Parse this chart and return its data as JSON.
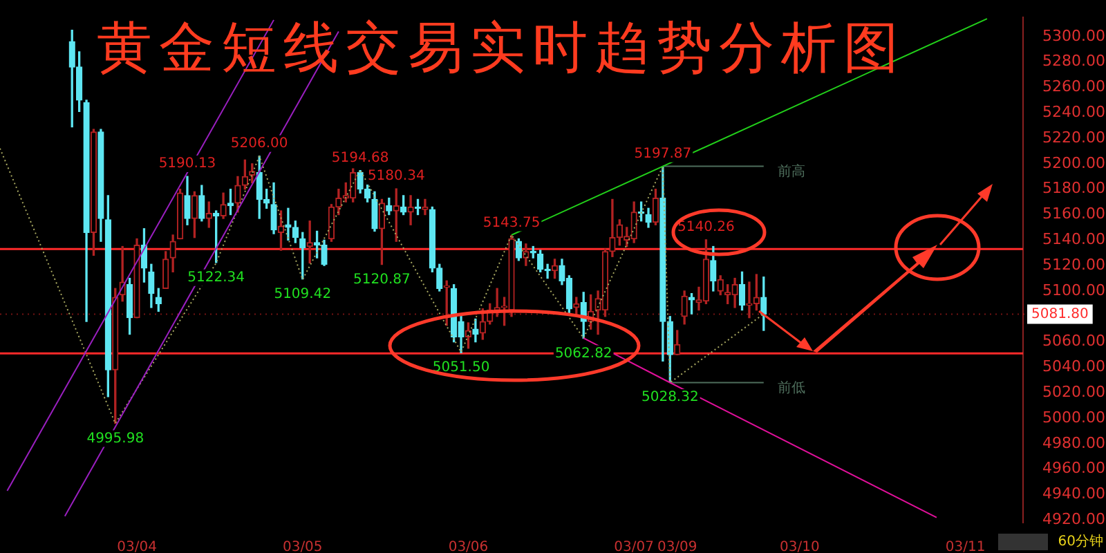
{
  "chart_data": {
    "type": "candlestick",
    "title": "黄金短线交易实时趋势分析图",
    "categories": [
      null,
      null,
      null,
      null,
      null,
      null,
      null,
      null,
      null,
      null,
      null,
      null,
      null,
      null,
      null,
      null,
      null,
      null,
      null,
      "03/04",
      null,
      null,
      null,
      null,
      null,
      null,
      null,
      null,
      null,
      null,
      null,
      null,
      null,
      null,
      null,
      null,
      null,
      null,
      null,
      null,
      null,
      null,
      "03/05",
      null,
      null,
      null,
      null,
      null,
      null,
      null,
      null,
      null,
      null,
      null,
      null,
      null,
      null,
      null,
      null,
      null,
      null,
      null,
      null,
      null,
      null,
      "03/06",
      null,
      null,
      null,
      null,
      null,
      null,
      null,
      null,
      null,
      null,
      null,
      null,
      null,
      null,
      null,
      null,
      null,
      null,
      null,
      null,
      null,
      null,
      "03/07",
      null,
      null,
      null,
      null,
      null,
      "03/09",
      null,
      null,
      null,
      null,
      null,
      null,
      null,
      null,
      null,
      null,
      null,
      null,
      null,
      null,
      null,
      null,
      "03/10",
      null,
      null,
      null,
      null,
      null,
      null,
      null,
      null,
      null,
      null,
      null,
      null,
      null,
      null,
      null,
      null,
      null,
      null,
      null,
      null,
      null,
      null,
      "03/11",
      null,
      null,
      null,
      null,
      null,
      null,
      null,
      null
    ],
    "ohlc": [
      null,
      null,
      null,
      null,
      null,
      null,
      null,
      null,
      null,
      null,
      [
        5296,
        5305,
        5229,
        5276
      ],
      [
        5276,
        5288,
        5241,
        5250
      ],
      [
        5248,
        5250,
        5076,
        5146
      ],
      [
        5146,
        5227,
        5128,
        5225
      ],
      [
        5225,
        5227,
        5139,
        5157
      ],
      [
        5156,
        5175,
        5017,
        5038
      ],
      [
        5038,
        5102,
        4995.98,
        5095
      ],
      [
        5097,
        5135,
        5092,
        5107
      ],
      [
        5105,
        5110,
        5066,
        5079
      ],
      [
        5079,
        5141,
        5079,
        5136
      ],
      [
        5136,
        5149,
        5107,
        5118
      ],
      [
        5115,
        5121,
        5087,
        5098
      ],
      [
        5095,
        5102,
        5084,
        5090
      ],
      [
        5102,
        5131,
        5102,
        5125
      ],
      [
        5126,
        5144,
        5115,
        5139
      ],
      [
        5141,
        5180,
        5141,
        5177
      ],
      [
        5175,
        5190.13,
        5152,
        5157
      ],
      [
        5157,
        5178,
        5142,
        5175
      ],
      [
        5175,
        5183,
        5155,
        5157
      ],
      [
        5157,
        5170,
        5150,
        5161
      ],
      [
        5161,
        5163,
        5122.34,
        5159
      ],
      [
        5159,
        5177,
        5157,
        5168
      ],
      [
        5169,
        5180,
        5160,
        5167
      ],
      [
        5169,
        5190,
        5162,
        5183
      ],
      [
        5183,
        5203,
        5180,
        5190
      ],
      [
        5191,
        5200,
        5185,
        5194
      ],
      [
        5193,
        5206,
        5157,
        5172
      ],
      [
        5172,
        5180,
        5165,
        5169
      ],
      [
        5168,
        5185,
        5145,
        5148
      ],
      [
        5146,
        5163,
        5132,
        5151
      ],
      [
        5152,
        5165,
        5140,
        5150
      ],
      [
        5150,
        5155,
        5138,
        5142
      ],
      [
        5141,
        5146,
        5109.42,
        5134
      ],
      [
        5135,
        5155,
        5122,
        5138
      ],
      [
        5138,
        5147,
        5126,
        5136
      ],
      [
        5136,
        5140,
        5120,
        5121
      ],
      [
        5141,
        5168,
        5139,
        5166
      ],
      [
        5166,
        5180,
        5160,
        5173
      ],
      [
        5173,
        5185,
        5170,
        5175
      ],
      [
        5173,
        5196,
        5170,
        5193
      ],
      [
        5193,
        5194.68,
        5177,
        5180
      ],
      [
        5180,
        5185,
        5170,
        5173
      ],
      [
        5172,
        5178,
        5147,
        5149
      ],
      [
        5149,
        5172,
        5120.87,
        5169
      ],
      [
        5167,
        5173,
        5160,
        5163
      ],
      [
        5163,
        5180.34,
        5139,
        5167
      ],
      [
        5166,
        5175,
        5160,
        5162
      ],
      [
        5162,
        5175,
        5152,
        5166
      ],
      [
        5166,
        5172,
        5160,
        5165
      ],
      [
        5164,
        5172,
        5160,
        5166
      ],
      [
        5164,
        5166,
        5115,
        5118
      ],
      [
        5118,
        5121,
        5100,
        5102
      ],
      [
        5103,
        5108,
        5073,
        5104
      ],
      [
        5102,
        5105,
        5060,
        5064
      ],
      [
        5076,
        5080,
        5051.5,
        5064
      ],
      [
        5064,
        5075,
        5055,
        5069
      ],
      [
        5070,
        5078,
        5060,
        5066
      ],
      [
        5067,
        5086,
        5062,
        5076
      ],
      [
        5076,
        5090,
        5074,
        5085
      ],
      [
        5085,
        5102,
        5080,
        5087
      ],
      [
        5087,
        5095,
        5073,
        5088
      ],
      [
        5085,
        5143.75,
        5080,
        5141
      ],
      [
        5139,
        5141,
        5124,
        5126
      ],
      [
        5126,
        5137,
        5120,
        5131
      ],
      [
        5131,
        5135,
        5126,
        5130
      ],
      [
        5129,
        5132,
        5115,
        5117
      ],
      [
        5117,
        5121,
        5110,
        5116
      ],
      [
        5116,
        5125,
        5110,
        5120
      ],
      [
        5120,
        5125,
        5105,
        5108
      ],
      [
        5110,
        5112,
        5083,
        5086
      ],
      [
        5087,
        5095,
        5082,
        5090
      ],
      [
        5091,
        5099,
        5062.82,
        5076
      ],
      [
        5076,
        5097,
        5070,
        5084
      ],
      [
        5085,
        5100,
        5066,
        5094
      ],
      [
        5085,
        5133,
        5080,
        5131
      ],
      [
        5131,
        5172,
        5127,
        5142
      ],
      [
        5142,
        5156,
        5136,
        5152
      ],
      [
        5140,
        5150,
        5135,
        5143
      ],
      [
        5141,
        5170,
        5138,
        5162
      ],
      [
        5162,
        5170,
        5155,
        5161
      ],
      [
        5160,
        5165,
        5150,
        5154
      ],
      [
        5154,
        5180,
        5152,
        5173
      ],
      [
        5173,
        5197.87,
        5045,
        5076
      ],
      [
        5076,
        5080,
        5028.32,
        5050
      ],
      [
        5050,
        5069,
        5050,
        5058
      ],
      [
        5080,
        5100,
        5074,
        5096
      ],
      [
        5095,
        5098,
        5082,
        5093
      ],
      [
        5091,
        5103,
        5085,
        5093
      ],
      [
        5092,
        5140.26,
        5090,
        5125
      ],
      [
        5124,
        5135,
        5100,
        5108
      ],
      [
        5100,
        5112,
        5097,
        5109
      ],
      [
        5097,
        5105,
        5090,
        5099
      ],
      [
        5097,
        5110,
        5087,
        5105
      ],
      [
        5105,
        5115,
        5085,
        5089
      ],
      [
        5089,
        5107,
        5079,
        5090
      ],
      [
        5090,
        5113,
        5085,
        5095
      ],
      [
        5095,
        5111,
        5069,
        5081.8
      ],
      null,
      null,
      null,
      null,
      null,
      null,
      null,
      null,
      null,
      null,
      null,
      null,
      null,
      null,
      null,
      null,
      null,
      null,
      null,
      null,
      null,
      null,
      null,
      null,
      null,
      null,
      null,
      null,
      null,
      null,
      null,
      null,
      null,
      null,
      null,
      null
    ],
    "colors": [
      null,
      null,
      null,
      null,
      null,
      null,
      null,
      null,
      null,
      null,
      "#5ee6f2",
      "#5ee6f2",
      "#5ee6f2",
      "#b22222",
      "#5ee6f2",
      "#5ee6f2",
      "#b22222",
      "#b22222",
      "#5ee6f2",
      "#b22222",
      "#5ee6f2",
      "#5ee6f2",
      "#5ee6f2",
      "#b22222",
      "#b22222",
      "#b22222",
      "#5ee6f2",
      "#b22222",
      "#5ee6f2",
      "#b22222",
      "#5ee6f2",
      "#b22222",
      "#5ee6f2",
      "#b22222",
      "#b22222",
      "#b22222",
      "#5ee6f2",
      "#5ee6f2",
      "#5ee6f2",
      "#b22222",
      "#5ee6f2",
      "#5ee6f2",
      "#5ee6f2",
      "#b22222",
      "#5ee6f2",
      "#5ee6f2",
      "#b22222",
      "#b22222",
      "#b22222",
      "#b22222",
      "#5ee6f2",
      "#5ee6f2",
      "#5ee6f2",
      "#b22222",
      "#5ee6f2",
      "#b22222",
      "#5ee6f2",
      "#b22222",
      "#5ee6f2",
      "#b22222",
      "#5ee6f2",
      "#5ee6f2",
      "#b22222",
      "#5ee6f2",
      "#5ee6f2",
      "#b22222",
      "#5ee6f2",
      "#b22222",
      "#b22222",
      "#b22222",
      "#b22222",
      "#b22222",
      "#5ee6f2",
      "#b22222",
      "#5ee6f2",
      "#5ee6f2",
      "#5ee6f2",
      "#b22222",
      "#5ee6f2",
      "#5ee6f2",
      "#b22222",
      "#5ee6f2",
      "#b22222",
      "#b22222",
      "#b22222",
      "#b22222",
      "#b22222",
      "#b22222",
      "#b22222",
      "#5ee6f2",
      "#5ee6f2",
      "#b22222",
      "#5ee6f2",
      "#5ee6f2",
      "#b22222",
      "#b22222",
      "#5ee6f2",
      "#b22222",
      "#b22222",
      "#5ee6f2",
      "#b22222",
      "#b22222",
      "#b22222",
      "#5ee6f2",
      "#b22222",
      "#b22222",
      "#5ee6f2",
      null,
      null,
      null,
      null,
      null,
      null,
      null,
      null,
      null,
      null,
      null,
      null,
      null,
      null,
      null,
      null,
      null,
      null,
      null,
      null,
      null,
      null,
      null,
      null,
      null,
      null,
      null,
      null,
      null,
      null,
      null,
      null,
      null,
      null,
      null,
      null
    ],
    "ylim": [
      4918,
      5315
    ],
    "yticks": [
      {
        "value": 4920,
        "label": "4920.00"
      },
      {
        "value": 4940,
        "label": "4940.00"
      },
      {
        "value": 4960,
        "label": "4960.00"
      },
      {
        "value": 4980,
        "label": "4980.00"
      },
      {
        "value": 5000,
        "label": "5000.00"
      },
      {
        "value": 5020,
        "label": "5020.00"
      },
      {
        "value": 5040,
        "label": "5040.00"
      },
      {
        "value": 5060,
        "label": "5060.00"
      },
      {
        "value": 5100,
        "label": "5100.00"
      },
      {
        "value": 5120,
        "label": "5120.00"
      },
      {
        "value": 5140,
        "label": "5140.00"
      },
      {
        "value": 5160,
        "label": "5160.00"
      },
      {
        "value": 5180,
        "label": "5180.00"
      },
      {
        "value": 5200,
        "label": "5200.00"
      },
      {
        "value": 5220,
        "label": "5220.00"
      },
      {
        "value": 5240,
        "label": "5240.00"
      },
      {
        "value": 5260,
        "label": "5260.00"
      },
      {
        "value": 5280,
        "label": "5280.00"
      },
      {
        "value": 5300,
        "label": "5300.00"
      }
    ],
    "series": [
      {
        "type": "line",
        "color": "#9a1fc0",
        "values": [
          null,
          4943,
          null,
          null,
          null,
          null,
          null,
          null,
          null,
          null,
          null,
          null,
          null,
          null,
          null,
          null,
          null,
          null,
          null,
          null,
          null,
          null,
          null,
          null,
          null,
          null,
          null,
          null,
          null,
          null,
          null,
          null,
          null,
          null,
          null,
          null,
          null,
          null,
          5313,
          null,
          null,
          null,
          null,
          null,
          null,
          null,
          null,
          null,
          null,
          null,
          null,
          null,
          null,
          null,
          null,
          null,
          null,
          null,
          null,
          null,
          null,
          null,
          null,
          null,
          null,
          null,
          null,
          null,
          null,
          null,
          null,
          null,
          null,
          null,
          null,
          null,
          null,
          null,
          null,
          null,
          null,
          null,
          null,
          null,
          null,
          null,
          null,
          null,
          null,
          null,
          null,
          null,
          null,
          null,
          null,
          null,
          null,
          null,
          null,
          null,
          null,
          null,
          null,
          null,
          null,
          null,
          null,
          null,
          null,
          null,
          null,
          null,
          null,
          null,
          null,
          null,
          null,
          null,
          null,
          null,
          null,
          null,
          null,
          null,
          null,
          null,
          null,
          null,
          null,
          null,
          null,
          null,
          null,
          null,
          null,
          null,
          null,
          null,
          null,
          null,
          null,
          null,
          null
        ]
      },
      {
        "type": "line",
        "color": "#9a1fc0",
        "values": [
          null,
          null,
          null,
          null,
          null,
          null,
          null,
          null,
          null,
          4923,
          null,
          null,
          null,
          null,
          null,
          null,
          null,
          null,
          null,
          null,
          null,
          null,
          null,
          null,
          null,
          null,
          null,
          null,
          null,
          null,
          null,
          null,
          null,
          null,
          null,
          null,
          null,
          null,
          null,
          null,
          null,
          null,
          null,
          null,
          null,
          null,
          null,
          5304,
          null,
          null,
          null,
          null,
          null,
          null,
          null,
          null,
          null,
          null,
          null,
          null,
          null,
          null,
          null,
          null,
          null,
          null,
          null,
          null,
          null,
          null,
          null,
          null,
          null,
          null,
          null,
          null,
          null,
          null,
          null,
          null,
          null,
          null,
          null,
          null,
          null,
          null,
          null,
          null,
          null,
          null,
          null,
          null,
          null,
          null,
          null,
          null,
          null,
          null,
          null,
          null,
          null,
          null,
          null,
          null,
          null,
          null,
          null,
          null,
          null,
          null,
          null,
          null,
          null,
          null,
          null,
          null,
          null,
          null,
          null,
          null,
          null,
          null,
          null,
          null,
          null,
          null,
          null,
          null,
          null,
          null,
          null,
          null,
          null,
          null,
          null,
          null,
          null,
          null,
          null,
          null,
          null,
          null,
          null
        ]
      },
      {
        "type": "line",
        "color": "#22d01a",
        "values": [
          null,
          null,
          null,
          null,
          null,
          null,
          null,
          null,
          null,
          null,
          null,
          null,
          null,
          null,
          null,
          null,
          null,
          null,
          null,
          null,
          null,
          null,
          null,
          null,
          null,
          null,
          null,
          null,
          null,
          null,
          null,
          null,
          null,
          null,
          null,
          null,
          null,
          null,
          null,
          null,
          null,
          null,
          null,
          null,
          null,
          null,
          null,
          null,
          null,
          null,
          null,
          null,
          null,
          null,
          null,
          null,
          null,
          null,
          null,
          null,
          null,
          null,
          null,
          null,
          null,
          null,
          null,
          null,
          null,
          null,
          null,
          5144,
          null,
          null,
          null,
          null,
          null,
          null,
          null,
          null,
          null,
          null,
          null,
          null,
          null,
          null,
          null,
          null,
          null,
          null,
          null,
          null,
          5198,
          null,
          null,
          null,
          null,
          null,
          null,
          null,
          null,
          null,
          null,
          null,
          null,
          null,
          null,
          null,
          null,
          null,
          null,
          null,
          null,
          null,
          null,
          null,
          null,
          null,
          null,
          null,
          null,
          null,
          null,
          null,
          null,
          null,
          null,
          null,
          null,
          null,
          null,
          null,
          null,
          null,
          null,
          null,
          null,
          5314,
          null,
          null,
          null,
          null,
          null
        ]
      },
      {
        "type": "line",
        "color": "#e0109a",
        "values": [
          null,
          null,
          null,
          null,
          null,
          null,
          null,
          null,
          null,
          null,
          null,
          null,
          null,
          null,
          null,
          null,
          null,
          null,
          null,
          null,
          null,
          null,
          null,
          null,
          null,
          null,
          null,
          null,
          null,
          null,
          null,
          null,
          null,
          null,
          null,
          null,
          null,
          null,
          null,
          null,
          null,
          null,
          null,
          null,
          null,
          null,
          null,
          null,
          null,
          null,
          null,
          null,
          null,
          null,
          null,
          null,
          null,
          null,
          null,
          null,
          null,
          null,
          null,
          null,
          null,
          null,
          null,
          null,
          null,
          null,
          null,
          null,
          null,
          null,
          null,
          null,
          null,
          null,
          null,
          null,
          null,
          5063,
          null,
          null,
          null,
          null,
          null,
          null,
          null,
          null,
          null,
          null,
          null,
          5028,
          null,
          null,
          null,
          null,
          null,
          null,
          null,
          null,
          null,
          null,
          null,
          null,
          null,
          null,
          null,
          null,
          null,
          null,
          null,
          null,
          null,
          null,
          null,
          null,
          null,
          null,
          null,
          null,
          null,
          null,
          null,
          null,
          null,
          null,
          null,
          null,
          4922,
          null,
          null,
          null,
          null,
          null,
          null,
          null,
          null,
          null,
          null,
          null,
          null
        ]
      },
      {
        "type": "line",
        "color": "#a8a860",
        "line_style": "dotted",
        "values": [
          5212,
          null,
          null,
          null,
          null,
          null,
          null,
          null,
          null,
          null,
          null,
          null,
          null,
          null,
          null,
          null,
          4996,
          null,
          null,
          null,
          null,
          null,
          null,
          null,
          null,
          null,
          null,
          null,
          null,
          null,
          5122,
          null,
          null,
          null,
          null,
          null,
          5206,
          null,
          null,
          null,
          null,
          null,
          5109,
          null,
          null,
          null,
          null,
          null,
          null,
          null,
          5195,
          null,
          null,
          null,
          null,
          null,
          null,
          null,
          null,
          null,
          null,
          null,
          null,
          null,
          5052,
          null,
          null,
          null,
          null,
          null,
          null,
          5144,
          null,
          null,
          null,
          null,
          null,
          null,
          null,
          null,
          null,
          5063,
          null,
          null,
          null,
          null,
          null,
          null,
          null,
          null,
          null,
          null,
          5198,
          5028,
          null,
          null,
          null,
          null,
          null,
          null,
          null,
          null,
          null,
          null,
          null,
          null,
          5082,
          null,
          null,
          null,
          null,
          null,
          null,
          null,
          null,
          null,
          null,
          null,
          null,
          null,
          null,
          null,
          null,
          null,
          null,
          null,
          null,
          null,
          null,
          null,
          null,
          null,
          null,
          null,
          null,
          null,
          null,
          null,
          null,
          null,
          null,
          null,
          null
        ]
      },
      {
        "type": "line",
        "name": "前高",
        "color": "#4e6e5c",
        "values": [
          null,
          null,
          null,
          null,
          null,
          null,
          null,
          null,
          null,
          null,
          null,
          null,
          null,
          null,
          null,
          null,
          null,
          null,
          null,
          null,
          null,
          null,
          null,
          null,
          null,
          null,
          null,
          null,
          null,
          null,
          null,
          null,
          null,
          null,
          null,
          null,
          null,
          null,
          null,
          null,
          null,
          null,
          null,
          null,
          null,
          null,
          null,
          null,
          null,
          null,
          null,
          null,
          null,
          null,
          null,
          null,
          null,
          null,
          null,
          null,
          null,
          null,
          null,
          null,
          null,
          null,
          null,
          null,
          null,
          null,
          null,
          null,
          null,
          null,
          null,
          null,
          null,
          null,
          null,
          null,
          null,
          null,
          null,
          null,
          null,
          null,
          null,
          null,
          null,
          null,
          null,
          null,
          5198,
          null,
          null,
          null,
          null,
          null,
          null,
          null,
          null,
          null,
          null,
          null,
          null,
          null,
          5198,
          null,
          null,
          null,
          null,
          null,
          null,
          null,
          null,
          null,
          null,
          null,
          null,
          null,
          null,
          null,
          null,
          null,
          null,
          null,
          null,
          null,
          null,
          null,
          null,
          null,
          null,
          null,
          null,
          null,
          null,
          null,
          null,
          null,
          null,
          null,
          null
        ]
      },
      {
        "type": "line",
        "name": "前低",
        "color": "#4e6e5c",
        "values": [
          null,
          null,
          null,
          null,
          null,
          null,
          null,
          null,
          null,
          null,
          null,
          null,
          null,
          null,
          null,
          null,
          null,
          null,
          null,
          null,
          null,
          null,
          null,
          null,
          null,
          null,
          null,
          null,
          null,
          null,
          null,
          null,
          null,
          null,
          null,
          null,
          null,
          null,
          null,
          null,
          null,
          null,
          null,
          null,
          null,
          null,
          null,
          null,
          null,
          null,
          null,
          null,
          null,
          null,
          null,
          null,
          null,
          null,
          null,
          null,
          null,
          null,
          null,
          null,
          null,
          null,
          null,
          null,
          null,
          null,
          null,
          null,
          null,
          null,
          null,
          null,
          null,
          null,
          null,
          null,
          null,
          null,
          null,
          null,
          null,
          null,
          null,
          null,
          null,
          null,
          null,
          null,
          null,
          5028,
          null,
          null,
          null,
          null,
          null,
          null,
          null,
          null,
          null,
          null,
          null,
          null,
          5028,
          null,
          null,
          null,
          null,
          null,
          null,
          null,
          null,
          null,
          null,
          null,
          null,
          null,
          null,
          null,
          null,
          null,
          null,
          null,
          null,
          null,
          null,
          null,
          null,
          null,
          null,
          null,
          null,
          null,
          null,
          null,
          null,
          null,
          null,
          null,
          null
        ]
      }
    ],
    "ref_lines": [
      {
        "axis": "y",
        "value": 5133,
        "color": "#ff2a2a"
      },
      {
        "axis": "y",
        "value": 5051,
        "color": "#ff2a2a"
      },
      {
        "axis": "y",
        "value": 5081.8,
        "label": "5081.80",
        "color": "#ff2a2a"
      }
    ],
    "annotations": [
      {
        "text": "5190.13",
        "y": 5190.13
      },
      {
        "text": "5206.00",
        "y": 5206
      },
      {
        "text": "5194.68",
        "y": 5194.68
      },
      {
        "text": "5180.34",
        "y": 5180.34
      },
      {
        "text": "5143.75",
        "y": 5143.75
      },
      {
        "text": "5197.87",
        "y": 5197.87
      },
      {
        "text": "5140.26",
        "y": 5140.26
      },
      {
        "text": "4995.98",
        "y": 4995.98
      },
      {
        "text": "5122.34",
        "y": 5122.34
      },
      {
        "text": "5109.42",
        "y": 5109.42
      },
      {
        "text": "5120.87",
        "y": 5120.87
      },
      {
        "text": "5051.50",
        "y": 5051.5
      },
      {
        "text": "5062.82",
        "y": 5062.82
      },
      {
        "text": "5028.32",
        "y": 5028.32
      },
      "60分钟"
    ]
  }
}
